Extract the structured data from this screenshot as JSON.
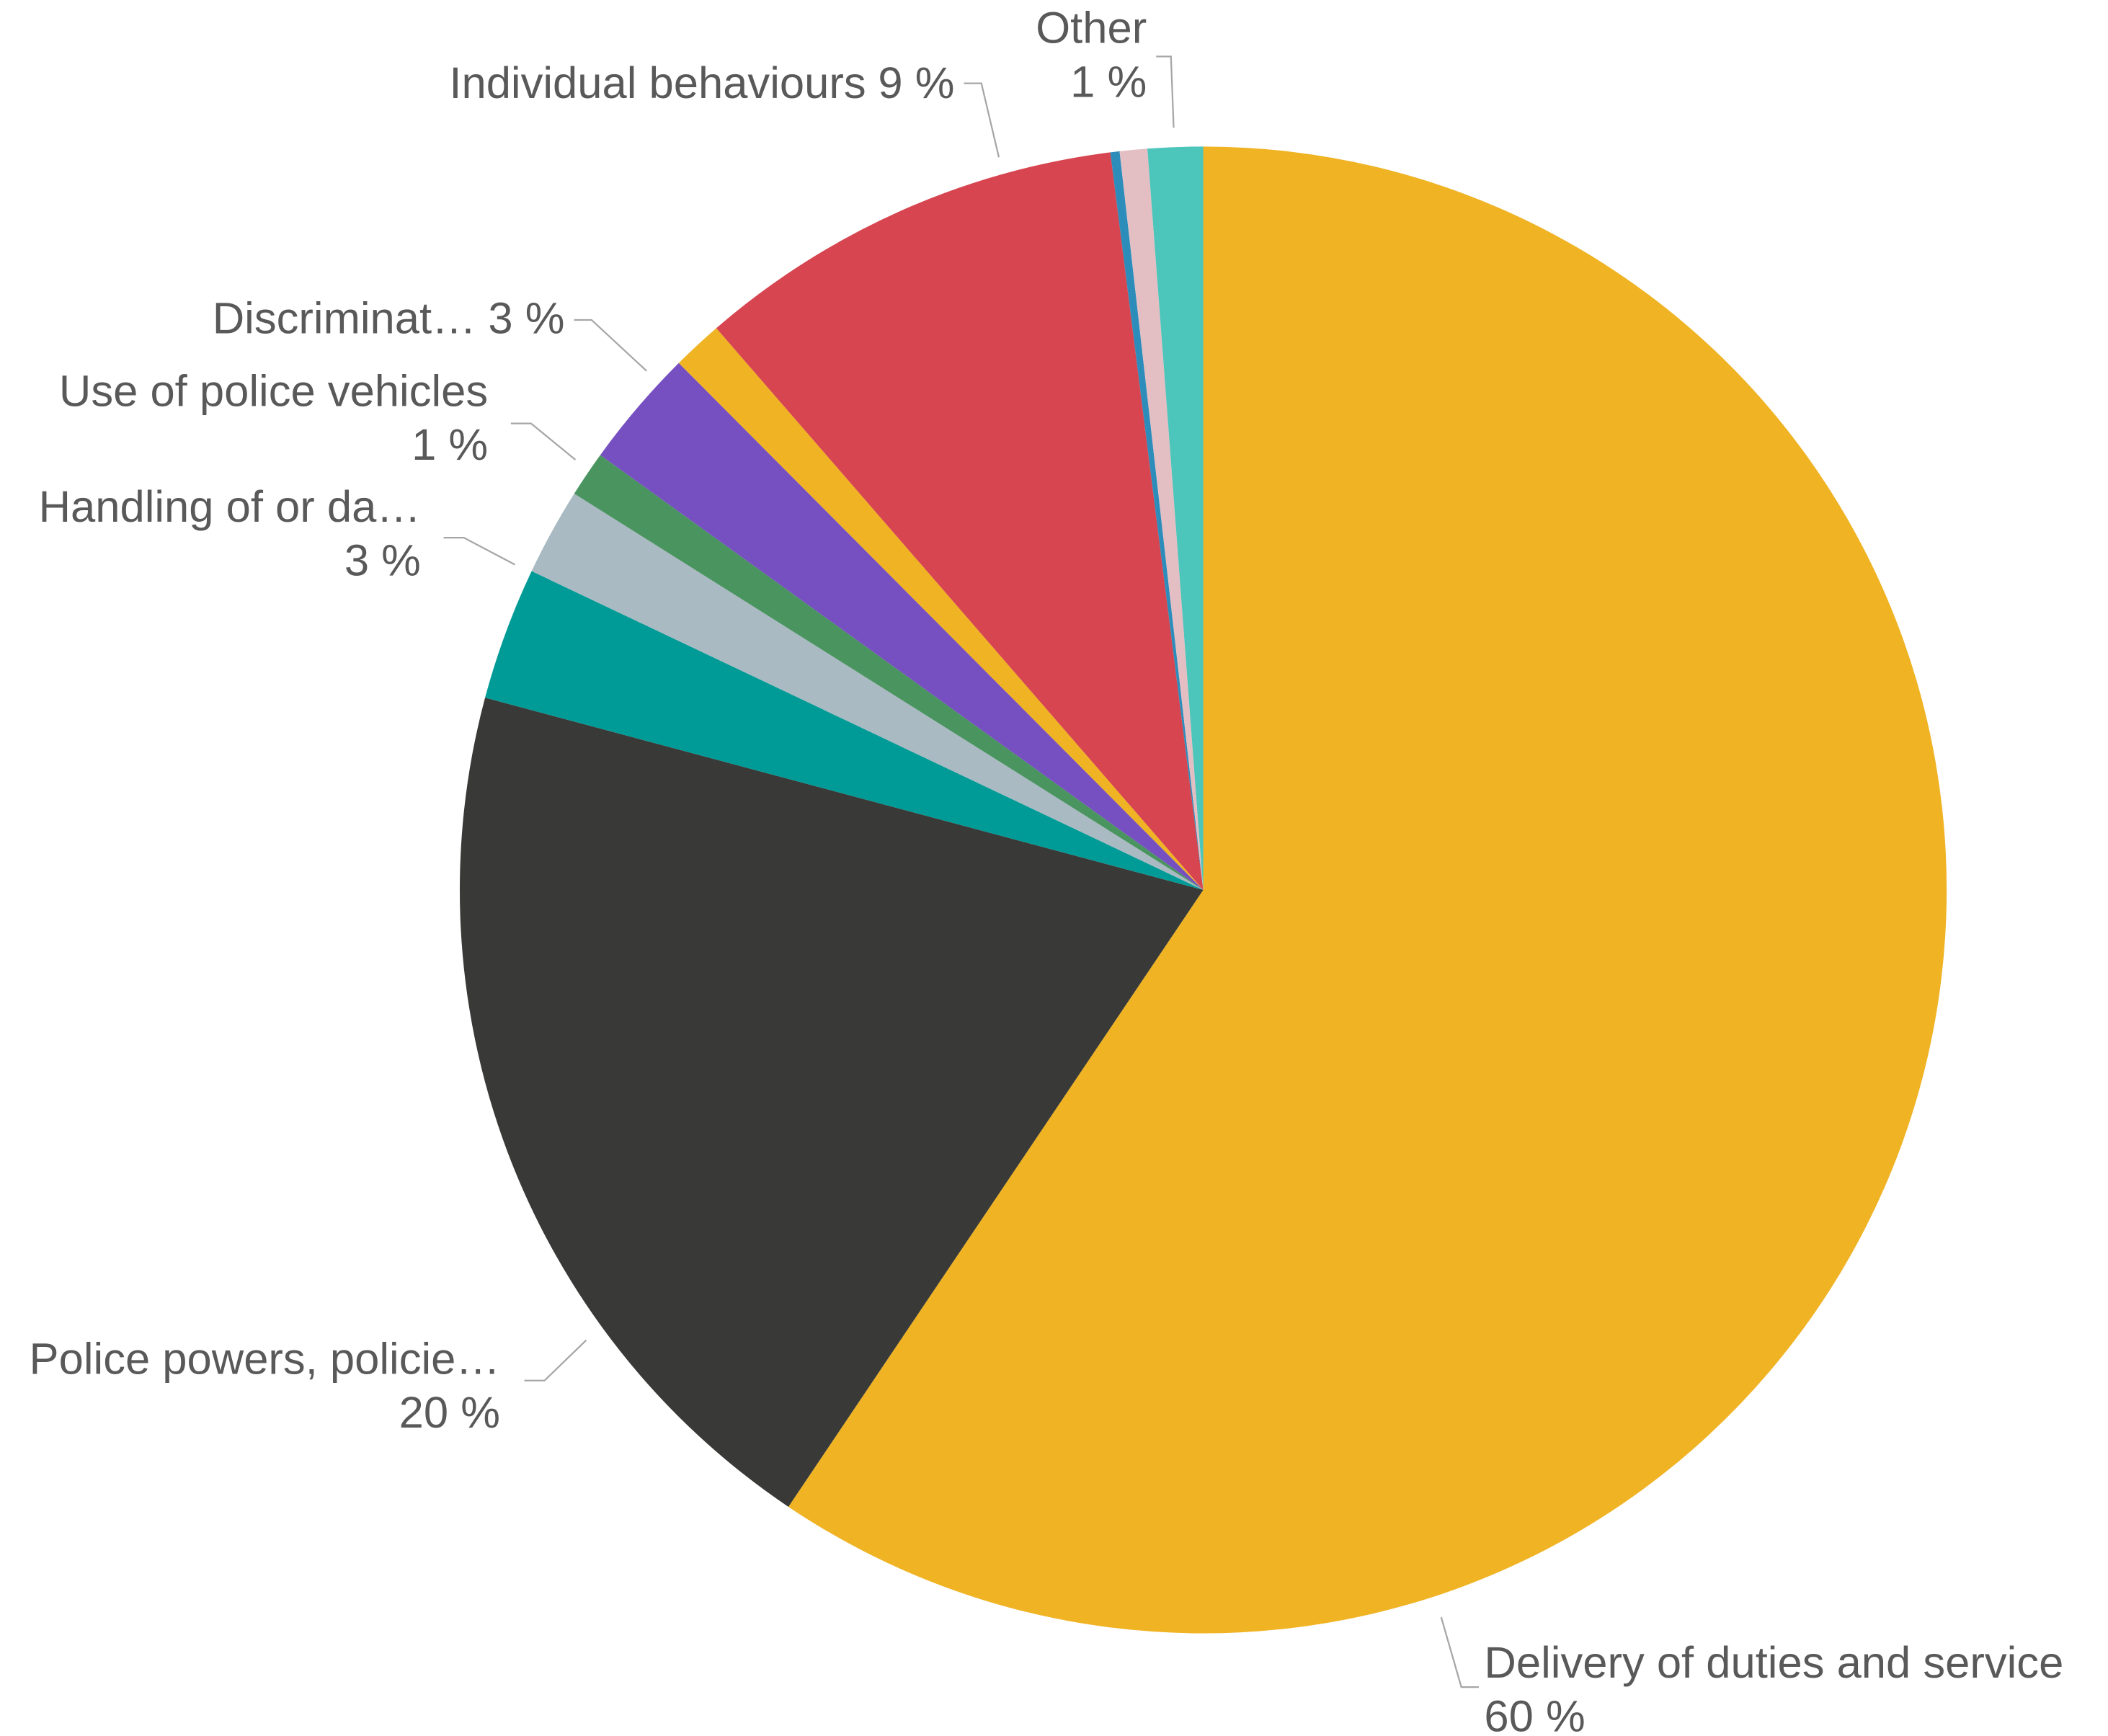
{
  "chart_data": {
    "type": "pie",
    "categories": [
      "Delivery of duties and service",
      "Police powers, policie…",
      "Handling of or da…",
      null,
      "Use of police vehicles",
      "Discriminat…",
      null,
      "Individual behaviours",
      null,
      null,
      "Other"
    ],
    "values": [
      59.6,
      19.8,
      2.9,
      1.9,
      1.0,
      2.6,
      1.1,
      9.4,
      0.2,
      0.6,
      1.2
    ],
    "value_labels": [
      "60 %",
      "20 %",
      "3 %",
      null,
      "1 %",
      "3 %",
      null,
      "9 %",
      null,
      null,
      "1 %"
    ],
    "colors": [
      "#EFB324",
      "#393A38",
      "#009B96",
      "#A9BAC2",
      "#4A9460",
      "#7650C0",
      "#EFB324",
      "#D64550",
      "#2C8DBB",
      "#E3BFC4",
      "#4CC5BA"
    ]
  }
}
